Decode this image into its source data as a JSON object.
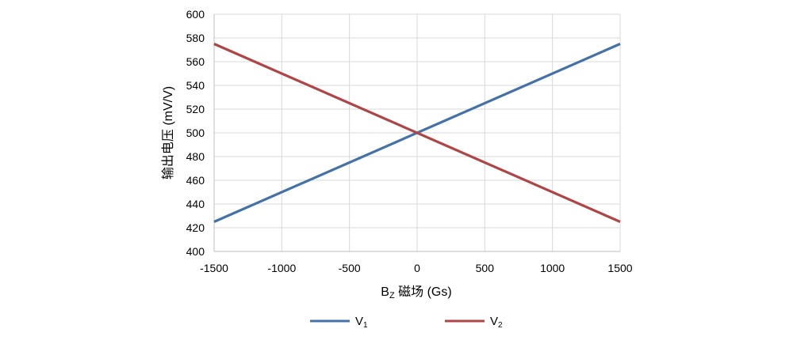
{
  "chart_data": {
    "type": "line",
    "title": "",
    "xlabel_main": "B",
    "xlabel_sub": "Z",
    "xlabel_rest": " 磁场 (Gs)",
    "ylabel": "输出电压 (mV/V)",
    "xlim": [
      -1500,
      1500
    ],
    "ylim": [
      400,
      600
    ],
    "xticks": [
      -1500,
      -1000,
      -500,
      0,
      500,
      1000,
      1500
    ],
    "yticks": [
      400,
      420,
      440,
      460,
      480,
      500,
      520,
      540,
      560,
      580,
      600
    ],
    "xtick_labels": [
      "-1500",
      "-1000",
      "-500",
      "0",
      "500",
      "1000",
      "1500"
    ],
    "ytick_labels": [
      "400",
      "420",
      "440",
      "460",
      "480",
      "500",
      "520",
      "540",
      "560",
      "580",
      "600"
    ],
    "grid": true,
    "legend_position": "bottom",
    "x": [
      -1500,
      1500
    ],
    "series": [
      {
        "name": "V",
        "sub": "1",
        "color": "#4472a8",
        "values": [
          425,
          575
        ]
      },
      {
        "name": "V",
        "sub": "2",
        "color": "#b04545",
        "values": [
          575,
          425
        ]
      }
    ]
  }
}
